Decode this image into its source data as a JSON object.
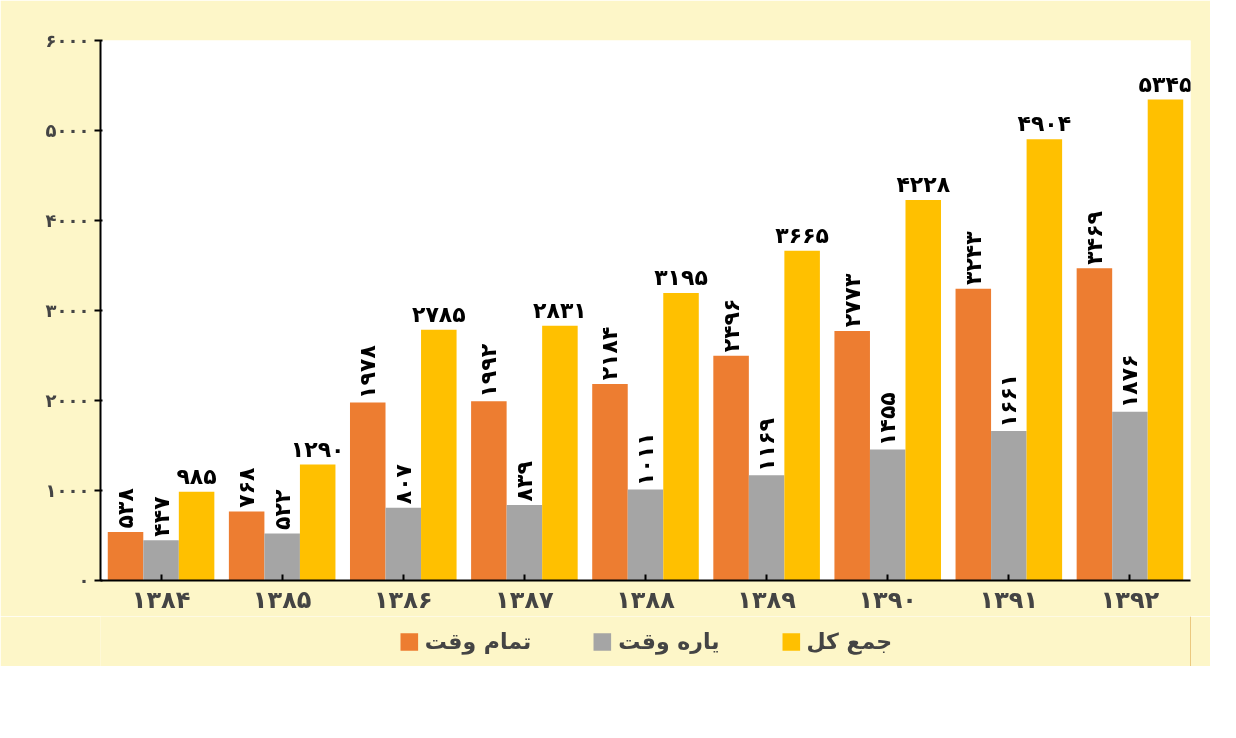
{
  "chart_data": {
    "type": "bar",
    "categories": [
      "۱۳۸۴",
      "۱۳۸۵",
      "۱۳۸۶",
      "۱۳۸۷",
      "۱۳۸۸",
      "۱۳۸۹",
      "۱۳۹۰",
      "۱۳۹۱",
      "۱۳۹۲"
    ],
    "series": [
      {
        "name": "تمام وقت",
        "color": "#ed7d31",
        "values": [
          538,
          768,
          1978,
          1992,
          2184,
          2496,
          2773,
          3243,
          3469
        ],
        "value_labels": [
          "۵۳۸",
          "۷۶۸",
          "۱۹۷۸",
          "۱۹۹۲",
          "۲۱۸۴",
          "۲۴۹۶",
          "۲۷۷۳",
          "۳۲۴۳",
          "۳۴۶۹"
        ]
      },
      {
        "name": "یاره وقت",
        "color": "#a5a5a5",
        "values": [
          447,
          522,
          807,
          839,
          1011,
          1169,
          1455,
          1661,
          1876
        ],
        "value_labels": [
          "۴۴۷",
          "۵۲۲",
          "۸۰۷",
          "۸۳۹",
          "۱۰۱۱",
          "۱۱۶۹",
          "۱۴۵۵",
          "۱۶۶۱",
          "۱۸۷۶"
        ]
      },
      {
        "name": "جمع کل",
        "color": "#ffc000",
        "values": [
          985,
          1290,
          2785,
          2831,
          3195,
          3665,
          4228,
          4904,
          5345
        ],
        "value_labels": [
          "۹۸۵",
          "۱۲۹۰",
          "۲۷۸۵",
          "۲۸۳۱",
          "۳۱۹۵",
          "۳۶۶۵",
          "۴۲۲۸",
          "۴۹۰۴",
          "۵۳۴۵"
        ]
      }
    ],
    "ylim": [
      0,
      6000
    ],
    "yticks": [
      {
        "value": 0,
        "label": "۰"
      },
      {
        "value": 1000,
        "label": "۱۰۰۰"
      },
      {
        "value": 2000,
        "label": "۲۰۰۰"
      },
      {
        "value": 3000,
        "label": "۳۰۰۰"
      },
      {
        "value": 4000,
        "label": "۴۰۰۰"
      },
      {
        "value": 5000,
        "label": "۵۰۰۰"
      },
      {
        "value": 6000,
        "label": "۶۰۰۰"
      }
    ],
    "grid": false,
    "legend": "bottom"
  }
}
